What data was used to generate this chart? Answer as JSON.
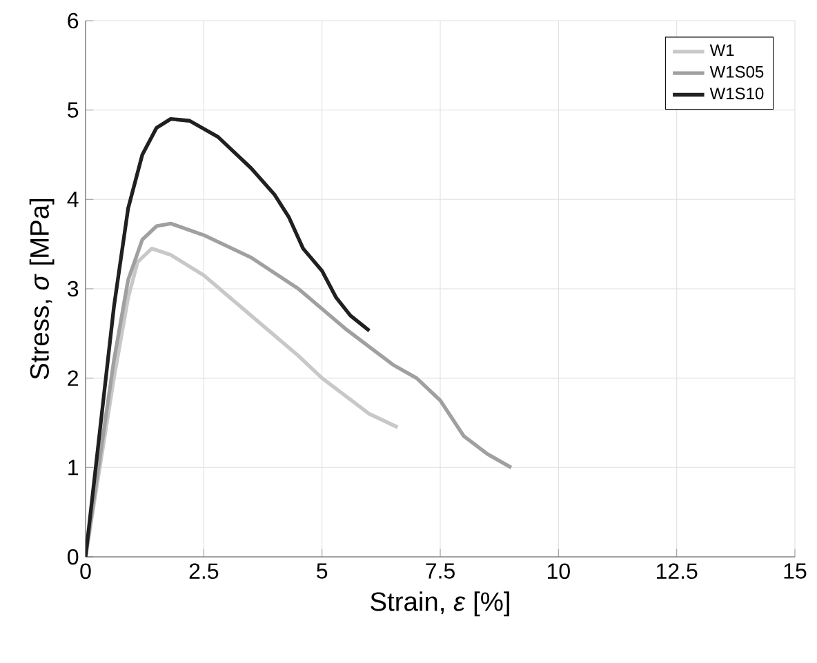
{
  "chart_data": {
    "type": "line",
    "xlabel": "Strain, *ε* [%]",
    "ylabel": "Stress, *σ* [MPa]",
    "xlim": [
      0,
      15
    ],
    "ylim": [
      0,
      6
    ],
    "xticks": [
      0,
      2.5,
      5,
      7.5,
      10,
      12.5,
      15
    ],
    "yticks": [
      0,
      1,
      2,
      3,
      4,
      5,
      6
    ],
    "grid": true,
    "legend": "top right",
    "line_style": "solid",
    "marker": "none",
    "series": [
      {
        "name": "W1",
        "color": "#c8c8c8",
        "x": [
          0,
          0.3,
          0.6,
          0.9,
          1.1,
          1.4,
          1.8,
          2.5,
          3.5,
          4.5,
          5,
          5.5,
          6,
          6.6
        ],
        "values": [
          0,
          1.0,
          2.0,
          2.9,
          3.3,
          3.45,
          3.38,
          3.15,
          2.7,
          2.25,
          2.0,
          1.8,
          1.6,
          1.45
        ]
      },
      {
        "name": "W1S05",
        "color": "#a0a0a0",
        "x": [
          0,
          0.3,
          0.6,
          0.9,
          1.2,
          1.5,
          1.8,
          2.5,
          3.5,
          4.5,
          5.5,
          6.5,
          7,
          7.5,
          8,
          8.5,
          9
        ],
        "values": [
          0,
          1.1,
          2.2,
          3.1,
          3.55,
          3.7,
          3.73,
          3.6,
          3.35,
          3.0,
          2.55,
          2.15,
          2.0,
          1.75,
          1.35,
          1.15,
          1.0
        ]
      },
      {
        "name": "W1S10",
        "color": "#202020",
        "x": [
          0,
          0.3,
          0.6,
          0.9,
          1.2,
          1.5,
          1.8,
          2.2,
          2.8,
          3.5,
          4,
          4.3,
          4.6,
          5,
          5.3,
          5.6,
          6
        ],
        "values": [
          0,
          1.4,
          2.8,
          3.9,
          4.5,
          4.8,
          4.9,
          4.88,
          4.7,
          4.35,
          4.05,
          3.8,
          3.45,
          3.2,
          2.9,
          2.7,
          2.53
        ]
      }
    ]
  }
}
